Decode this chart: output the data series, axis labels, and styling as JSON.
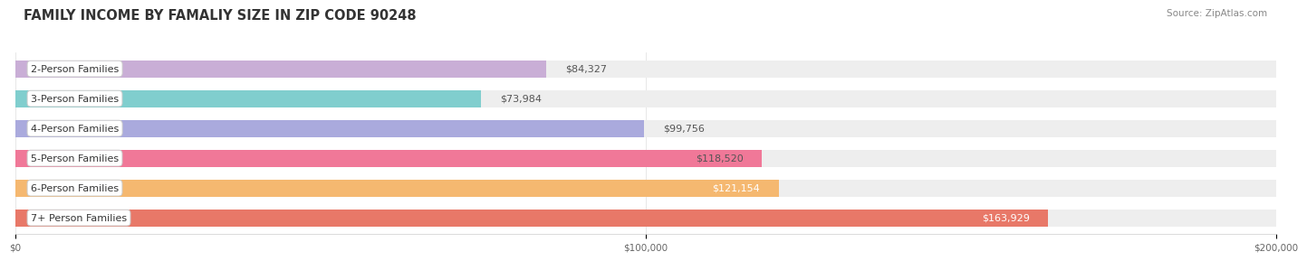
{
  "title": "FAMILY INCOME BY FAMALIY SIZE IN ZIP CODE 90248",
  "source": "Source: ZipAtlas.com",
  "categories": [
    "2-Person Families",
    "3-Person Families",
    "4-Person Families",
    "5-Person Families",
    "6-Person Families",
    "7+ Person Families"
  ],
  "values": [
    84327,
    73984,
    99756,
    118520,
    121154,
    163929
  ],
  "bar_colors": [
    "#c9aed6",
    "#80cece",
    "#aaaadd",
    "#f07898",
    "#f5b870",
    "#e87868"
  ],
  "bar_track_color": "#eeeeee",
  "xlim": [
    0,
    200000
  ],
  "xticks": [
    0,
    100000,
    200000
  ],
  "xtick_labels": [
    "$0",
    "$100,000",
    "$200,000"
  ],
  "value_label_colors": [
    "#555555",
    "#555555",
    "#555555",
    "#555555",
    "#ffffff",
    "#ffffff"
  ],
  "background_color": "#ffffff",
  "title_fontsize": 10.5,
  "label_fontsize": 8,
  "value_fontsize": 8,
  "source_fontsize": 7.5
}
